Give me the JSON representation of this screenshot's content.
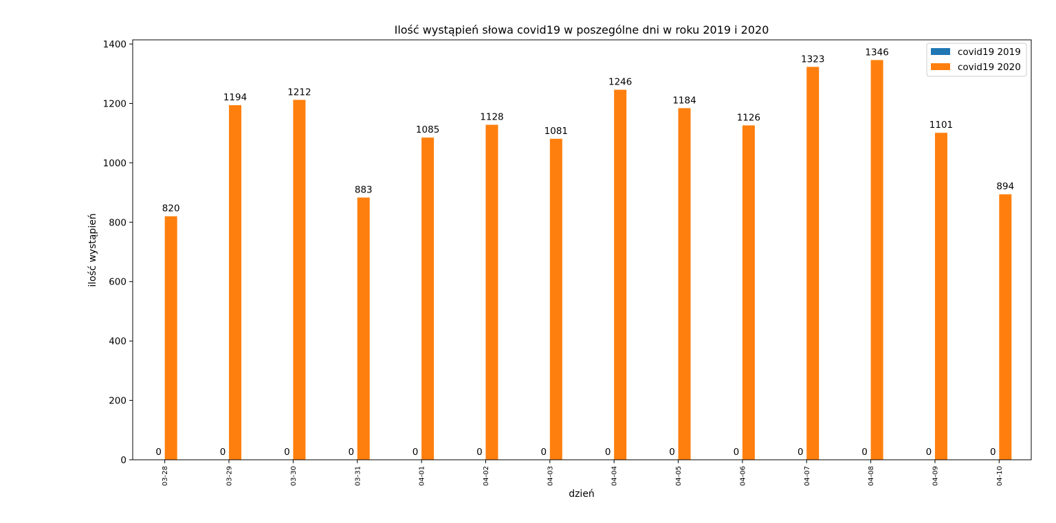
{
  "chart_data": {
    "type": "bar",
    "title": "Ilość wystąpień słowa covid19 w poszególne dni w roku 2019 i 2020",
    "xlabel": "dzień",
    "ylabel": "ilość wystąpień",
    "categories": [
      "03-28",
      "03-29",
      "03-30",
      "03-31",
      "04-01",
      "04-02",
      "04-03",
      "04-04",
      "04-05",
      "04-06",
      "04-07",
      "04-08",
      "04-09",
      "04-10"
    ],
    "series": [
      {
        "name": "covid19 2019",
        "color": "#1f77b4",
        "values": [
          0,
          0,
          0,
          0,
          0,
          0,
          0,
          0,
          0,
          0,
          0,
          0,
          0,
          0
        ]
      },
      {
        "name": "covid19 2020",
        "color": "#ff7f0e",
        "values": [
          820,
          1194,
          1212,
          883,
          1085,
          1128,
          1081,
          1246,
          1184,
          1126,
          1323,
          1346,
          1101,
          894
        ]
      }
    ],
    "ylim": [
      0,
      1414
    ],
    "yticks": [
      0,
      200,
      400,
      600,
      800,
      1000,
      1200,
      1400
    ],
    "legend": "top-right",
    "grid": false
  }
}
